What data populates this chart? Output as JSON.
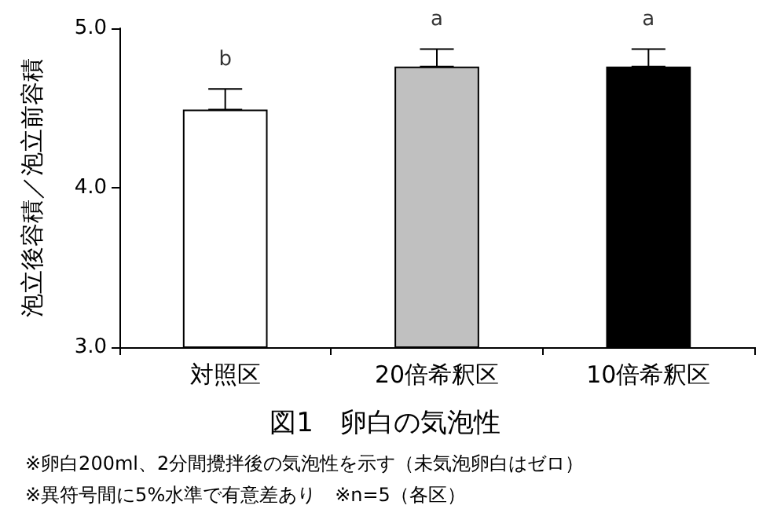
{
  "chart_data": {
    "type": "bar",
    "title": "図1　卵白の気泡性",
    "ylabel": "泡立後容積／泡立前容積",
    "categories": [
      "対照区",
      "20倍希釈区",
      "10倍希釈区"
    ],
    "values": [
      4.49,
      4.76,
      4.76
    ],
    "colors": [
      "#ffffff",
      "#c0c0c0",
      "#000000"
    ],
    "errors": [
      [
        4.49,
        4.62
      ],
      [
        4.76,
        4.87
      ],
      [
        4.76,
        4.87
      ]
    ],
    "ylim": [
      3,
      5
    ],
    "yticks": [
      {
        "value": 3,
        "label": "3.0"
      },
      {
        "value": 4,
        "label": "4.0"
      },
      {
        "value": 5,
        "label": "5.0"
      }
    ],
    "grid": false,
    "annotations": [
      {
        "text": "b",
        "x": "対照区",
        "y": 4.62
      },
      {
        "text": "a",
        "x": "20倍希釈区",
        "y": 4.87
      },
      {
        "text": "a",
        "x": "10倍希釈区",
        "y": 4.87
      },
      "※卵白200ml、2分間攪拌後の気泡性を示す（未気泡卵白はゼロ）",
      "※異符号間に5%水準で有意差あり　※n=5（各区）"
    ]
  }
}
